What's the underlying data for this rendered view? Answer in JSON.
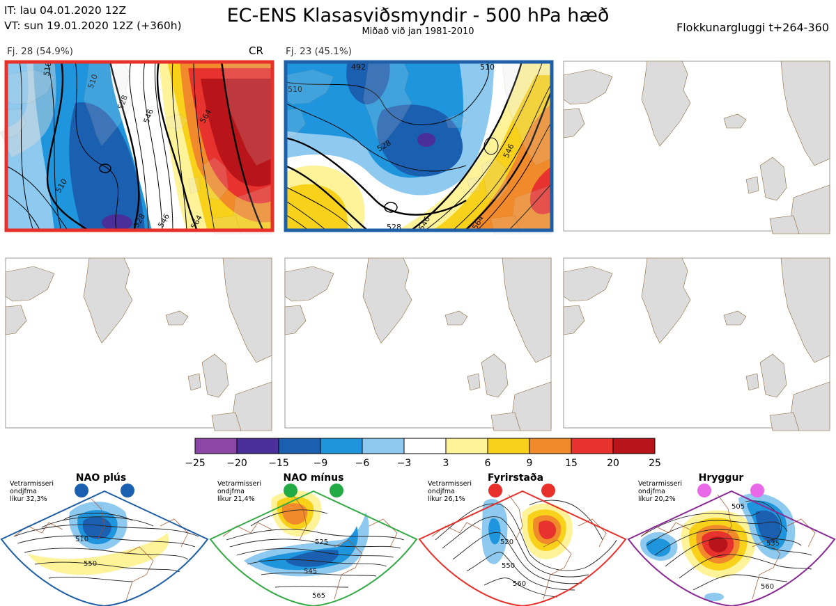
{
  "header": {
    "it_line": "IT: lau 04.01.2020 12Z",
    "vt_line": "VT: sun 19.01.2020 12Z  (+360h)",
    "title": "EC-ENS Klasasviðsmyndir - 500 hPa hæð",
    "subtitle": "Miðað við jan 1981-2010",
    "window": "Flokkunargluggi t+264-360"
  },
  "clusters": [
    {
      "label": "Fj. 28 (54.9%)",
      "tag": "CR",
      "frame_color": "#e8302a",
      "contours": [
        "510",
        "510",
        "528",
        "546",
        "564",
        "510",
        "528",
        "546",
        "564"
      ]
    },
    {
      "label": "Fj. 23 (45.1%)",
      "tag": "",
      "frame_color": "#1f5fa8",
      "contours": [
        "492",
        "510",
        "510",
        "528",
        "546",
        "564",
        "528",
        "546"
      ]
    }
  ],
  "colorbar": {
    "ticks": [
      "−25",
      "−20",
      "−15",
      "−9",
      "−6",
      "−3",
      "3",
      "6",
      "9",
      "15",
      "20",
      "25"
    ],
    "colors": [
      "#8b47a3",
      "#4a2e9a",
      "#1a5fb0",
      "#1f95dd",
      "#8ec9ef",
      "#ffffff",
      "#fff39a",
      "#f8d21a",
      "#f08a2a",
      "#e8322e",
      "#b8141a"
    ]
  },
  "regimes": [
    {
      "name": "NAO plús",
      "note": [
        "Vetrarmisseri",
        "ondjfma",
        "líkur 32,3%"
      ],
      "frame_color": "#1f5fa8",
      "dot_color": "#1a5fb0",
      "labels": [
        "510",
        "550"
      ]
    },
    {
      "name": "NAO mínus",
      "note": [
        "Vetrarmisseri",
        "ondjfma",
        "líkur 21,4%"
      ],
      "frame_color": "#33aa44",
      "dot_color": "#22aa44",
      "labels": [
        "525",
        "545",
        "565"
      ]
    },
    {
      "name": "Fyrirstaða",
      "note": [
        "Vetrarmisseri",
        "ondjfma",
        "líkur 26,1%"
      ],
      "frame_color": "#e8302a",
      "dot_color": "#e8302a",
      "labels": [
        "520",
        "550",
        "560"
      ]
    },
    {
      "name": "Hryggur",
      "note": [
        "Vetrarmisseri",
        "ondjfma",
        "líkur 20,2%"
      ],
      "frame_color": "#8a2a96",
      "dot_color": "#e868e8",
      "labels": [
        "505",
        "535",
        "560"
      ]
    }
  ]
}
